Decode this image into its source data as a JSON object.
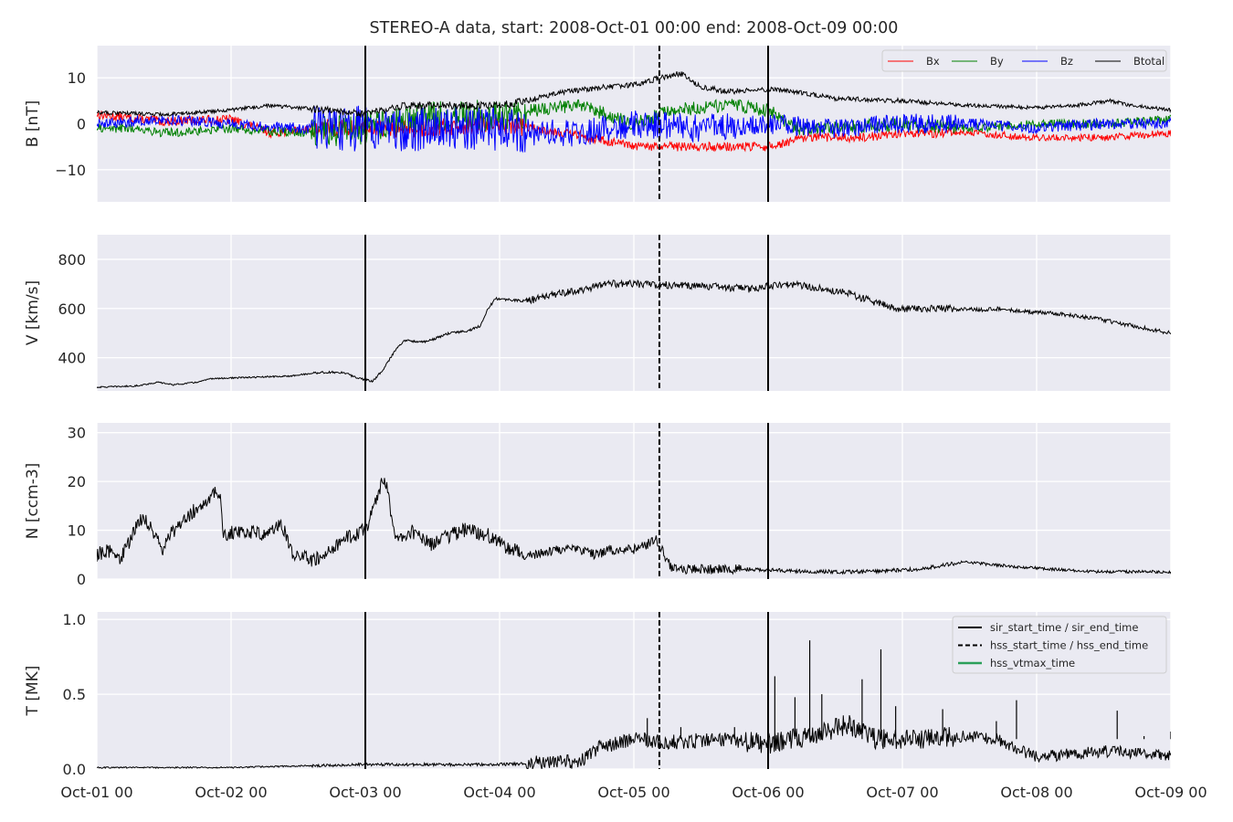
{
  "title": "STEREO-A data, start: 2008-Oct-01 00:00  end: 2008-Oct-09 00:00",
  "colors": {
    "panel_bg": "#EAEAF2",
    "grid": "#FFFFFF",
    "Bx": "#FF0000",
    "By": "#008000",
    "Bz": "#0000FF",
    "Btotal": "#000000",
    "event_line": "#000000",
    "hss_vtmax_line": "#2CA05A"
  },
  "chart_data": [
    {
      "type": "line",
      "ylabel": "B [nT]",
      "ylim": [
        -17,
        17
      ],
      "yticks": [
        -10,
        0,
        10
      ],
      "ytick_labels": [
        "−10",
        "0",
        "10"
      ],
      "xlim_days": [
        0,
        8
      ],
      "grid": true,
      "legend": {
        "placement": "top-right",
        "columns": 4,
        "entries": [
          "Bx",
          "By",
          "Bz",
          "Btotal"
        ]
      },
      "series": [
        {
          "name": "Bx",
          "color_key": "Bx",
          "noise": [
            1.0,
            2.0,
            1.0,
            1.0,
            0.8
          ],
          "points": [
            [
              0,
              2
            ],
            [
              0.5,
              0.5
            ],
            [
              1,
              1
            ],
            [
              1.3,
              -2
            ],
            [
              1.6,
              -1
            ],
            [
              2,
              -1
            ],
            [
              2.5,
              -1
            ],
            [
              3,
              0
            ],
            [
              3.5,
              -2
            ],
            [
              4,
              -5
            ],
            [
              4.5,
              -5
            ],
            [
              5,
              -5
            ],
            [
              5.3,
              -3
            ],
            [
              5.7,
              -3
            ],
            [
              6,
              -2
            ],
            [
              6.5,
              -2
            ],
            [
              7,
              -3
            ],
            [
              7.5,
              -3
            ],
            [
              8,
              -2
            ]
          ]
        },
        {
          "name": "By",
          "color_key": "By",
          "noise": [
            1.0,
            3.5,
            1.5,
            1.5,
            1.0
          ],
          "points": [
            [
              0,
              -1
            ],
            [
              0.3,
              -1
            ],
            [
              0.5,
              -2
            ],
            [
              1,
              -1
            ],
            [
              1.5,
              -2
            ],
            [
              2,
              -1
            ],
            [
              2.5,
              1.5
            ],
            [
              3,
              2
            ],
            [
              3.3,
              3
            ],
            [
              3.6,
              4
            ],
            [
              4,
              0
            ],
            [
              4.3,
              3
            ],
            [
              4.7,
              4
            ],
            [
              5,
              3
            ],
            [
              5.2,
              -1
            ],
            [
              5.5,
              -1
            ],
            [
              6,
              0
            ],
            [
              6.5,
              -1
            ],
            [
              7,
              0
            ],
            [
              7.5,
              0
            ],
            [
              8,
              1
            ]
          ]
        },
        {
          "name": "Bz",
          "color_key": "Bz",
          "noise": [
            1.2,
            5.0,
            3.0,
            2.2,
            1.2
          ],
          "points": [
            [
              0,
              0
            ],
            [
              0.5,
              1
            ],
            [
              1,
              0
            ],
            [
              1.5,
              -1
            ],
            [
              2,
              -1
            ],
            [
              2.5,
              -1
            ],
            [
              3,
              -1
            ],
            [
              3.3,
              -2
            ],
            [
              3.6,
              -2
            ],
            [
              4,
              0
            ],
            [
              4.5,
              -1
            ],
            [
              5,
              0
            ],
            [
              5.5,
              -1
            ],
            [
              6,
              0
            ],
            [
              6.5,
              0
            ],
            [
              7,
              -1
            ],
            [
              7.5,
              0
            ],
            [
              8,
              0
            ]
          ]
        },
        {
          "name": "Btotal",
          "color_key": "Btotal",
          "noise": [
            0.4,
            0.8,
            0.6,
            0.5,
            0.4
          ],
          "points": [
            [
              0,
              2.5
            ],
            [
              0.5,
              2
            ],
            [
              1,
              3
            ],
            [
              1.3,
              4
            ],
            [
              1.7,
              3
            ],
            [
              2,
              2
            ],
            [
              2.3,
              4
            ],
            [
              2.7,
              4
            ],
            [
              3,
              4
            ],
            [
              3.2,
              5
            ],
            [
              3.5,
              7
            ],
            [
              3.8,
              8
            ],
            [
              4,
              8.5
            ],
            [
              4.2,
              10
            ],
            [
              4.35,
              11
            ],
            [
              4.5,
              8
            ],
            [
              4.7,
              7
            ],
            [
              5,
              7.5
            ],
            [
              5.2,
              7
            ],
            [
              5.5,
              5.5
            ],
            [
              6,
              5
            ],
            [
              6.5,
              4
            ],
            [
              7,
              3.5
            ],
            [
              7.3,
              4
            ],
            [
              7.55,
              5
            ],
            [
              7.7,
              4
            ],
            [
              8,
              3
            ]
          ]
        }
      ]
    },
    {
      "type": "line",
      "ylabel": "V [km/s]",
      "ylim": [
        265,
        900
      ],
      "yticks": [
        400,
        600,
        800
      ],
      "ytick_labels": [
        "400",
        "600",
        "800"
      ],
      "xlim_days": [
        0,
        8
      ],
      "grid": true,
      "series": [
        {
          "name": "",
          "color_key": "Btotal",
          "noise": [
            3,
            5,
            15,
            15,
            8
          ],
          "points": [
            [
              0,
              280
            ],
            [
              0.5,
              285
            ],
            [
              0.8,
              300
            ],
            [
              1,
              290
            ],
            [
              1.3,
              300
            ],
            [
              1.5,
              315
            ],
            [
              2,
              320
            ],
            [
              2.5,
              325
            ],
            [
              2.9,
              340
            ],
            [
              3.2,
              340
            ],
            [
              3.4,
              318
            ],
            [
              3.6,
              305
            ],
            [
              3.75,
              360
            ],
            [
              3.9,
              435
            ],
            [
              4,
              470
            ],
            [
              4.3,
              465
            ],
            [
              4.6,
              500
            ],
            [
              4.85,
              510
            ],
            [
              5,
              530
            ],
            [
              5.1,
              600
            ],
            [
              5.2,
              640
            ],
            [
              5.6,
              630
            ],
            [
              6,
              660
            ],
            [
              6.4,
              680
            ],
            [
              6.6,
              700
            ],
            [
              7,
              700
            ],
            [
              7.5,
              695
            ],
            [
              8,
              690
            ],
            [
              8.5,
              680
            ],
            [
              9,
              700
            ],
            [
              9.5,
              680
            ],
            [
              9.8,
              660
            ],
            [
              10,
              640
            ],
            [
              10.4,
              600
            ],
            [
              11,
              600
            ],
            [
              11.5,
              595
            ],
            [
              11.8,
              600
            ],
            [
              12,
              590
            ],
            [
              12.5,
              580
            ],
            [
              13,
              560
            ],
            [
              13.5,
              530
            ],
            [
              14,
              500
            ]
          ]
        }
      ],
      "x_scale_note": "points x in tenths-of-day units divided by 1.75"
    },
    {
      "type": "line",
      "ylabel": "N [ccm-3]",
      "ylim": [
        0,
        32
      ],
      "yticks": [
        0,
        10,
        20,
        30
      ],
      "ytick_labels": [
        "0",
        "10",
        "20",
        "30"
      ],
      "xlim_days": [
        0,
        8
      ],
      "grid": true,
      "series": [
        {
          "name": "",
          "color_key": "Btotal",
          "noise": [
            1.5,
            1.5,
            1.0,
            0.4,
            0.3
          ],
          "points": [
            [
              0,
              5
            ],
            [
              0.15,
              6
            ],
            [
              0.3,
              4
            ],
            [
              0.5,
              10
            ],
            [
              0.6,
              13
            ],
            [
              0.75,
              9
            ],
            [
              0.85,
              6
            ],
            [
              1,
              10
            ],
            [
              1.2,
              13
            ],
            [
              1.4,
              16
            ],
            [
              1.6,
              18
            ],
            [
              1.65,
              9
            ],
            [
              1.9,
              10
            ],
            [
              2.2,
              9
            ],
            [
              2.4,
              12
            ],
            [
              2.55,
              5
            ],
            [
              2.8,
              4
            ],
            [
              3,
              5
            ],
            [
              3.2,
              8
            ],
            [
              3.5,
              10
            ],
            [
              3.75,
              21
            ],
            [
              3.9,
              8
            ],
            [
              4.1,
              10
            ],
            [
              4.35,
              7
            ],
            [
              4.6,
              9
            ],
            [
              4.8,
              10
            ],
            [
              5.1,
              9
            ],
            [
              5.4,
              6
            ],
            [
              5.7,
              5
            ],
            [
              6.0,
              6
            ],
            [
              6.3,
              6
            ],
            [
              6.5,
              5
            ],
            [
              6.7,
              6
            ],
            [
              7.0,
              6
            ],
            [
              7.3,
              8
            ],
            [
              7.5,
              2
            ],
            [
              8,
              2
            ],
            [
              8.6,
              2
            ],
            [
              9.3,
              1.5
            ],
            [
              10,
              1.5
            ],
            [
              10.7,
              2
            ],
            [
              11.3,
              3.5
            ],
            [
              12,
              2.5
            ],
            [
              13,
              1.5
            ],
            [
              14,
              1.5
            ]
          ]
        }
      ],
      "x_scale_note": "points x in tenths-of-day units divided by 1.75"
    },
    {
      "type": "line",
      "ylabel": "T [MK]",
      "ylim": [
        0,
        1.05
      ],
      "yticks": [
        0.0,
        0.5,
        1.0
      ],
      "ytick_labels": [
        "0.0",
        "0.5",
        "1.0"
      ],
      "xlim_days": [
        0,
        8
      ],
      "xtick_labels": [
        "Oct-01 00",
        "Oct-02 00",
        "Oct-03 00",
        "Oct-04 00",
        "Oct-05 00",
        "Oct-06 00",
        "Oct-07 00",
        "Oct-08 00",
        "Oct-09 00"
      ],
      "grid": true,
      "legend": {
        "placement": "top-right",
        "columns": 1,
        "entries": [
          "sir_start_time / sir_end_time",
          "hss_start_time / hss_end_time",
          "hss_vtmax_time"
        ]
      },
      "series": [
        {
          "name": "",
          "color_key": "Btotal",
          "noise": [
            0.005,
            0.01,
            0.05,
            0.07,
            0.04
          ],
          "points": [
            [
              0,
              0.01
            ],
            [
              1,
              0.01
            ],
            [
              2,
              0.03
            ],
            [
              3,
              0.03
            ],
            [
              3.3,
              0.04
            ],
            [
              3.6,
              0.05
            ],
            [
              3.75,
              0.15
            ],
            [
              4,
              0.2
            ],
            [
              4.3,
              0.18
            ],
            [
              4.6,
              0.2
            ],
            [
              5,
              0.17
            ],
            [
              5.3,
              0.22
            ],
            [
              5.6,
              0.3
            ],
            [
              5.8,
              0.2
            ],
            [
              6,
              0.2
            ],
            [
              6.5,
              0.22
            ],
            [
              6.7,
              0.2
            ],
            [
              6.85,
              0.14
            ],
            [
              7,
              0.08
            ],
            [
              7.5,
              0.12
            ],
            [
              8,
              0.09
            ]
          ]
        }
      ],
      "spikes": [
        [
          4.1,
          0.34
        ],
        [
          4.35,
          0.28
        ],
        [
          4.75,
          0.28
        ],
        [
          5.05,
          0.62
        ],
        [
          5.2,
          0.48
        ],
        [
          5.31,
          0.86
        ],
        [
          5.4,
          0.5
        ],
        [
          5.7,
          0.6
        ],
        [
          5.84,
          0.8
        ],
        [
          5.95,
          0.42
        ],
        [
          6.3,
          0.4
        ],
        [
          6.7,
          0.32
        ],
        [
          6.85,
          0.46
        ],
        [
          7.6,
          0.39
        ],
        [
          7.8,
          0.22
        ],
        [
          8,
          0.25
        ]
      ]
    }
  ],
  "event_lines": {
    "sir_start_day": 2.0,
    "sir_end_day": 5.0,
    "hss_start_day": 4.19,
    "hss_vtmax_day": null
  }
}
